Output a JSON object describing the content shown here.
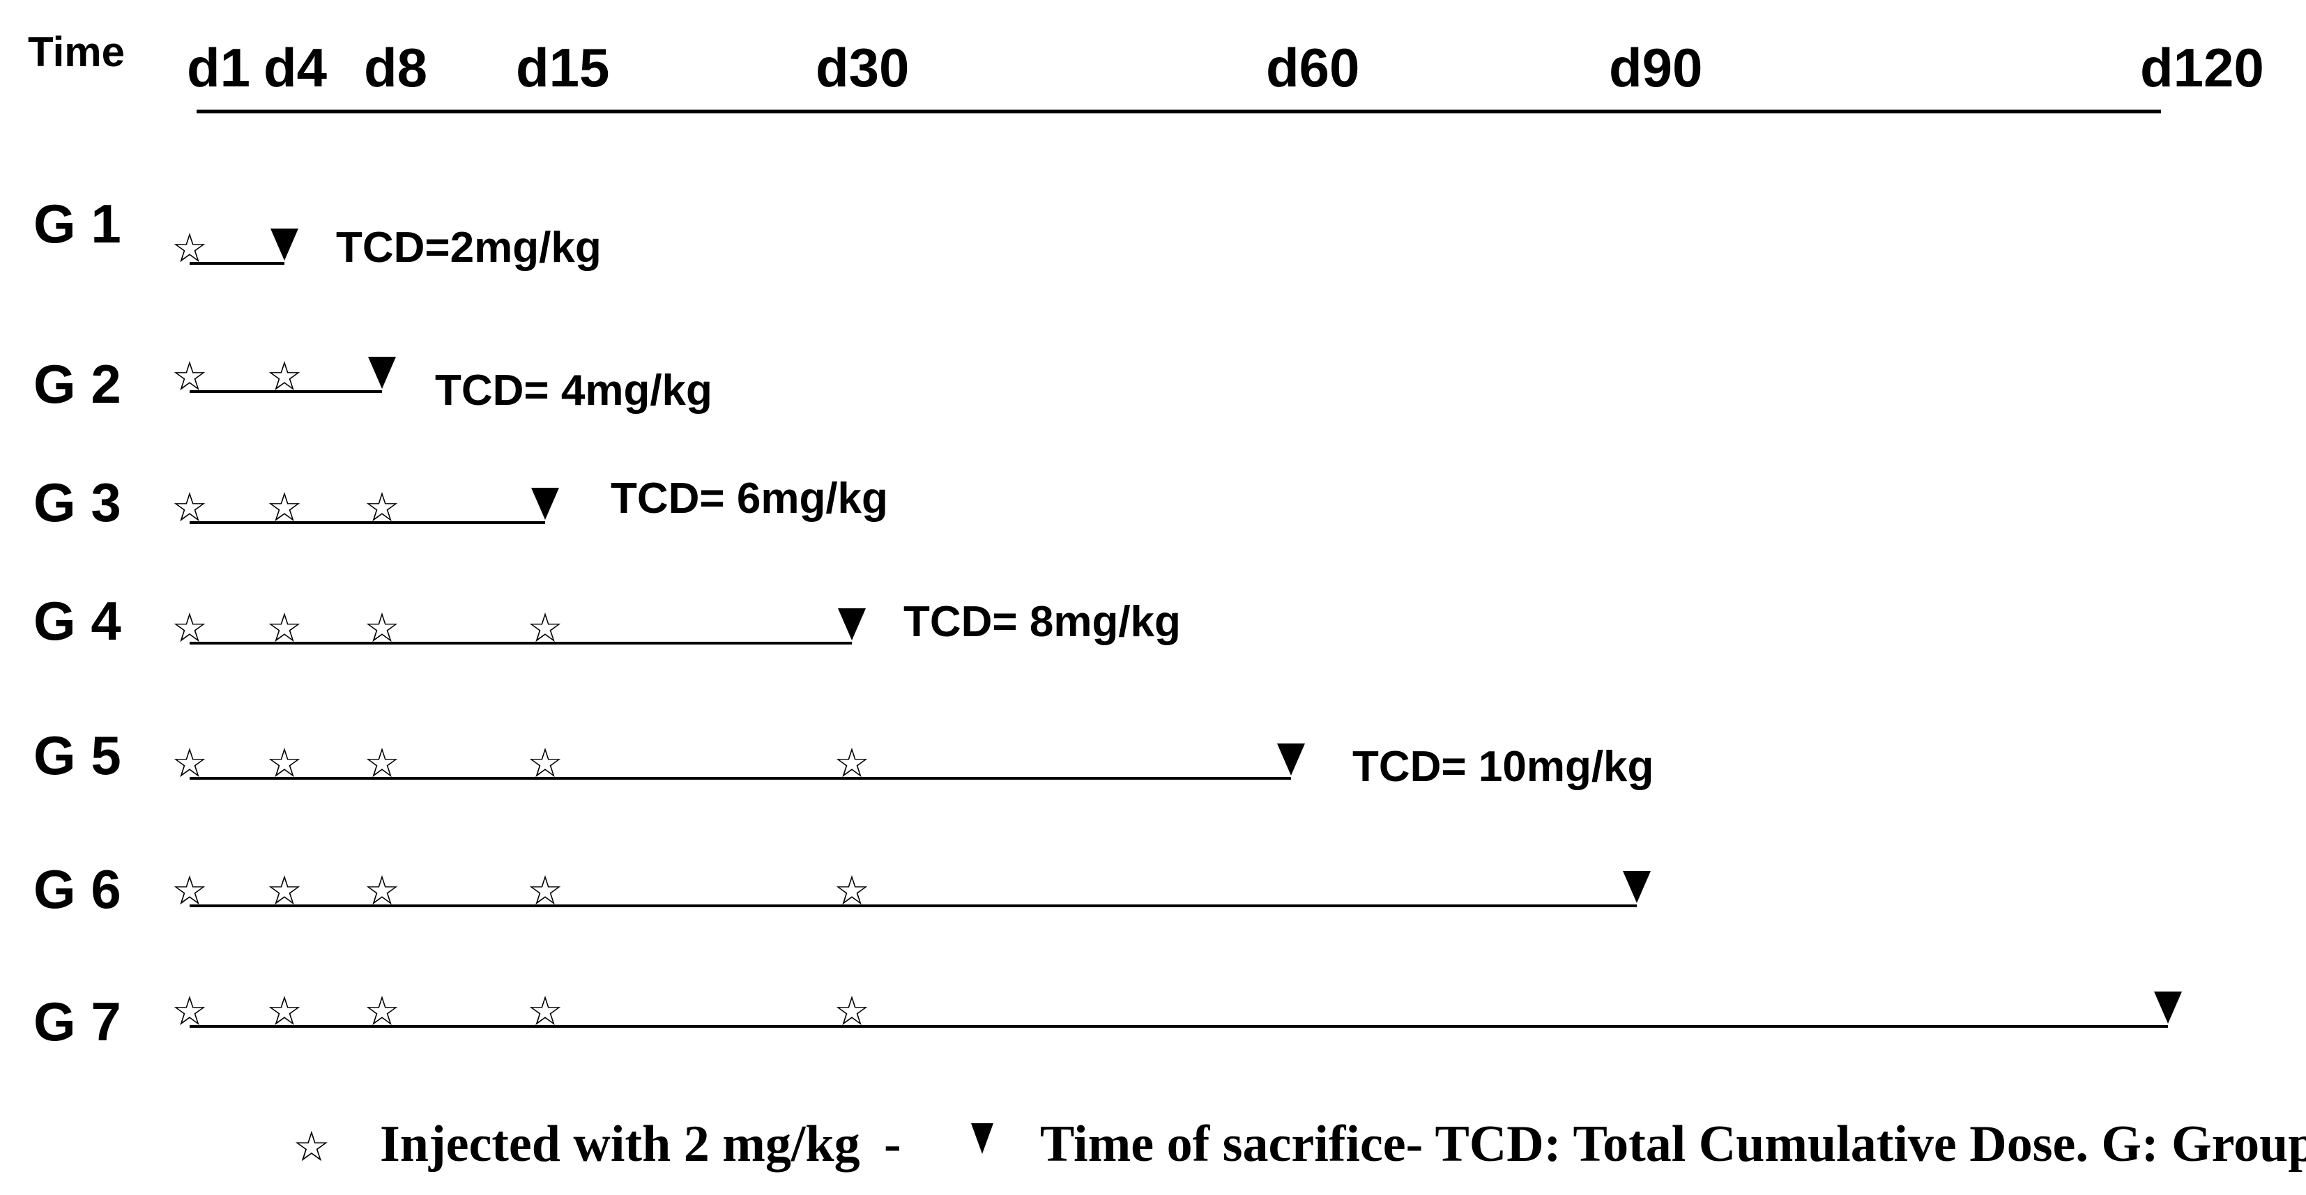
{
  "axis": {
    "label": "Time",
    "days": [
      "d1",
      "d4",
      "d8",
      "d15",
      "d30",
      "d60",
      "d90",
      "d120"
    ]
  },
  "groups": [
    {
      "label": "G 1",
      "injection_days": [
        "d1"
      ],
      "sacrifice_day": "d4",
      "tcd": "TCD=2mg/kg"
    },
    {
      "label": "G 2",
      "injection_days": [
        "d1",
        "d4"
      ],
      "sacrifice_day": "d8",
      "tcd": "TCD= 4mg/kg"
    },
    {
      "label": "G 3",
      "injection_days": [
        "d1",
        "d4",
        "d8"
      ],
      "sacrifice_day": "d15",
      "tcd": "TCD= 6mg/kg"
    },
    {
      "label": "G 4",
      "injection_days": [
        "d1",
        "d4",
        "d8",
        "d15"
      ],
      "sacrifice_day": "d30",
      "tcd": "TCD= 8mg/kg"
    },
    {
      "label": "G 5",
      "injection_days": [
        "d1",
        "d4",
        "d8",
        "d15",
        "d30"
      ],
      "sacrifice_day": "d60",
      "tcd": "TCD= 10mg/kg"
    },
    {
      "label": "G 6",
      "injection_days": [
        "d1",
        "d4",
        "d8",
        "d15",
        "d30"
      ],
      "sacrifice_day": "d90",
      "tcd": ""
    },
    {
      "label": "G 7",
      "injection_days": [
        "d1",
        "d4",
        "d8",
        "d15",
        "d30"
      ],
      "sacrifice_day": "d120",
      "tcd": ""
    }
  ],
  "legend": {
    "injection_text": "Injected with 2 mg/kg",
    "separator": "-",
    "sacrifice_text": "Time of sacrifice- TCD: Total Cumulative Dose. G: Group"
  },
  "icons": {
    "injection": "star-outline-icon",
    "sacrifice": "down-arrowhead-icon"
  }
}
